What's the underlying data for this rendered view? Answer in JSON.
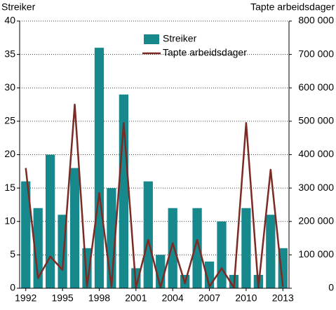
{
  "chart_data": {
    "type": "bar",
    "ylabel": "Streiker",
    "y2label": "Tapte arbeidsdager",
    "categories": [
      "1992",
      null,
      null,
      "1995",
      null,
      null,
      "1998",
      null,
      null,
      "2001",
      null,
      null,
      "2004",
      null,
      null,
      "2007",
      null,
      null,
      "2010",
      null,
      null,
      "2013"
    ],
    "series": [
      {
        "name": "Streiker",
        "type": "bar",
        "color": "#17898d",
        "values": [
          16,
          12,
          20,
          11,
          18,
          6,
          36,
          15,
          29,
          3,
          16,
          5,
          12,
          2,
          12,
          4,
          10,
          2,
          12,
          2,
          11,
          6
        ]
      },
      {
        "name": "Tapte arbeidsdager",
        "type": "line",
        "axis": "y2",
        "color": "#7b2a24",
        "values": [
          360000,
          30000,
          95000,
          55000,
          550000,
          5000,
          285000,
          5000,
          495000,
          2000,
          145000,
          3000,
          135000,
          15000,
          145000,
          5000,
          60000,
          2000,
          495000,
          2000,
          355000,
          5000
        ]
      }
    ],
    "ylim": [
      0,
      40
    ],
    "yticks": [
      0,
      5,
      10,
      15,
      20,
      25,
      30,
      35,
      40
    ],
    "y2lim": [
      0,
      800000
    ],
    "y2ticks": [
      0,
      {
        "value": 100000,
        "label": "100 000"
      },
      {
        "value": 200000,
        "label": "200 000"
      },
      {
        "value": 300000,
        "label": "300 000"
      },
      {
        "value": 400000,
        "label": "400 000"
      },
      {
        "value": 500000,
        "label": "500 000"
      },
      {
        "value": 600000,
        "label": "600 000"
      },
      {
        "value": 700000,
        "label": "700 000"
      },
      {
        "value": 800000,
        "label": "800 000"
      }
    ],
    "grid": true
  }
}
